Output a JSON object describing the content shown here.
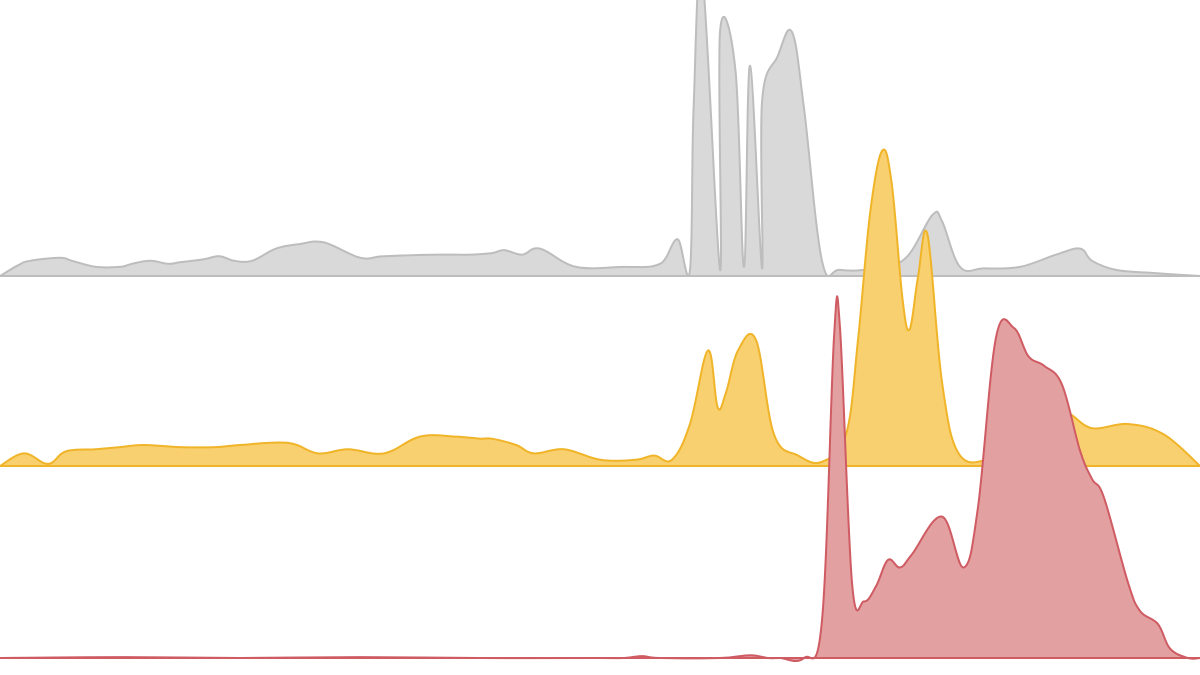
{
  "chart_data": {
    "type": "area",
    "title": "",
    "xlabel": "",
    "ylabel": "",
    "xlim": [
      0,
      100
    ],
    "grid": false,
    "legend": "none",
    "series": [
      {
        "fill": "#d9d9d9",
        "stroke": "#bdbdbd",
        "x": [
          0,
          1.5,
          2.5,
          5,
          6,
          8,
          10,
          11,
          12.5,
          14,
          15,
          17,
          18.3,
          19.5,
          21,
          23,
          25,
          27,
          30,
          32,
          36,
          39,
          41,
          42,
          43.5,
          45,
          48,
          52,
          55,
          57.5,
          60,
          62,
          63.5,
          55.5,
          54,
          56.5,
          57.8,
          58.5,
          60,
          61.3,
          62.5,
          63.5,
          64.8,
          66,
          67,
          68.5,
          70,
          73,
          75.5,
          77.7,
          78.5,
          80,
          82,
          85,
          88,
          90,
          91,
          93,
          96,
          100
        ],
        "y": [
          0,
          3.5,
          5,
          6,
          5,
          3,
          3,
          4,
          5,
          4,
          4.5,
          5.5,
          6.5,
          5,
          5,
          9,
          10.5,
          11,
          6,
          6.5,
          7,
          7,
          7.5,
          8.5,
          7,
          9,
          3,
          3,
          4,
          2,
          2,
          3,
          2.5,
          6,
          3,
          12,
          55,
          100,
          80,
          67,
          69,
          57,
          72,
          80,
          55,
          5,
          2,
          2.5,
          6,
          20,
          18,
          3,
          2.5,
          3,
          7,
          9,
          5,
          2,
          1,
          0
        ]
      },
      {
        "fill": "#f9d070",
        "stroke": "#f0b429",
        "x": [
          0,
          2,
          4,
          5.5,
          8,
          10,
          12,
          15,
          18,
          20,
          24,
          26.5,
          29,
          32,
          35,
          38,
          40,
          41,
          43,
          44.5,
          47,
          50,
          53,
          54.5,
          56,
          57.5,
          59,
          59.8,
          60.5,
          61.5,
          63,
          64.5,
          66.5,
          68.5,
          70.5,
          71.5,
          72.5,
          73.5,
          74.3,
          75.2,
          75.8,
          76.5,
          77.3,
          78.5,
          80,
          83,
          86,
          88,
          89,
          91,
          94,
          97,
          100
        ],
        "y": [
          0,
          6,
          1,
          7,
          8,
          9,
          10,
          9,
          9,
          10,
          11,
          6,
          8,
          6,
          14,
          14,
          13,
          13,
          10,
          6,
          8,
          3,
          3,
          5,
          3,
          20,
          55,
          28,
          35,
          55,
          60,
          15,
          5,
          2,
          15,
          60,
          120,
          150,
          135,
          80,
          65,
          90,
          110,
          40,
          5,
          4,
          8,
          20,
          25,
          18,
          20,
          15,
          0
        ]
      },
      {
        "fill": "#e3a0a1",
        "stroke": "#cf5b63",
        "x": [
          0,
          10,
          20,
          30,
          40,
          50,
          52,
          53.5,
          55,
          60,
          62.5,
          64,
          65,
          67,
          68.5,
          69.5,
          70,
          71,
          72,
          73,
          74,
          75,
          76,
          78.5,
          80.3,
          81.5,
          83,
          84.5,
          85.7,
          87,
          88.5,
          90,
          91,
          92,
          94,
          95,
          96.5,
          97.5,
          99,
          100
        ],
        "y": [
          0,
          0.5,
          0,
          0.5,
          0,
          0,
          0,
          1,
          0,
          0,
          1.5,
          0,
          0,
          0,
          20,
          170,
          175,
          40,
          30,
          38,
          52,
          48,
          55,
          75,
          48,
          80,
          170,
          175,
          160,
          155,
          145,
          110,
          95,
          85,
          40,
          25,
          18,
          5,
          0,
          0
        ]
      }
    ]
  }
}
